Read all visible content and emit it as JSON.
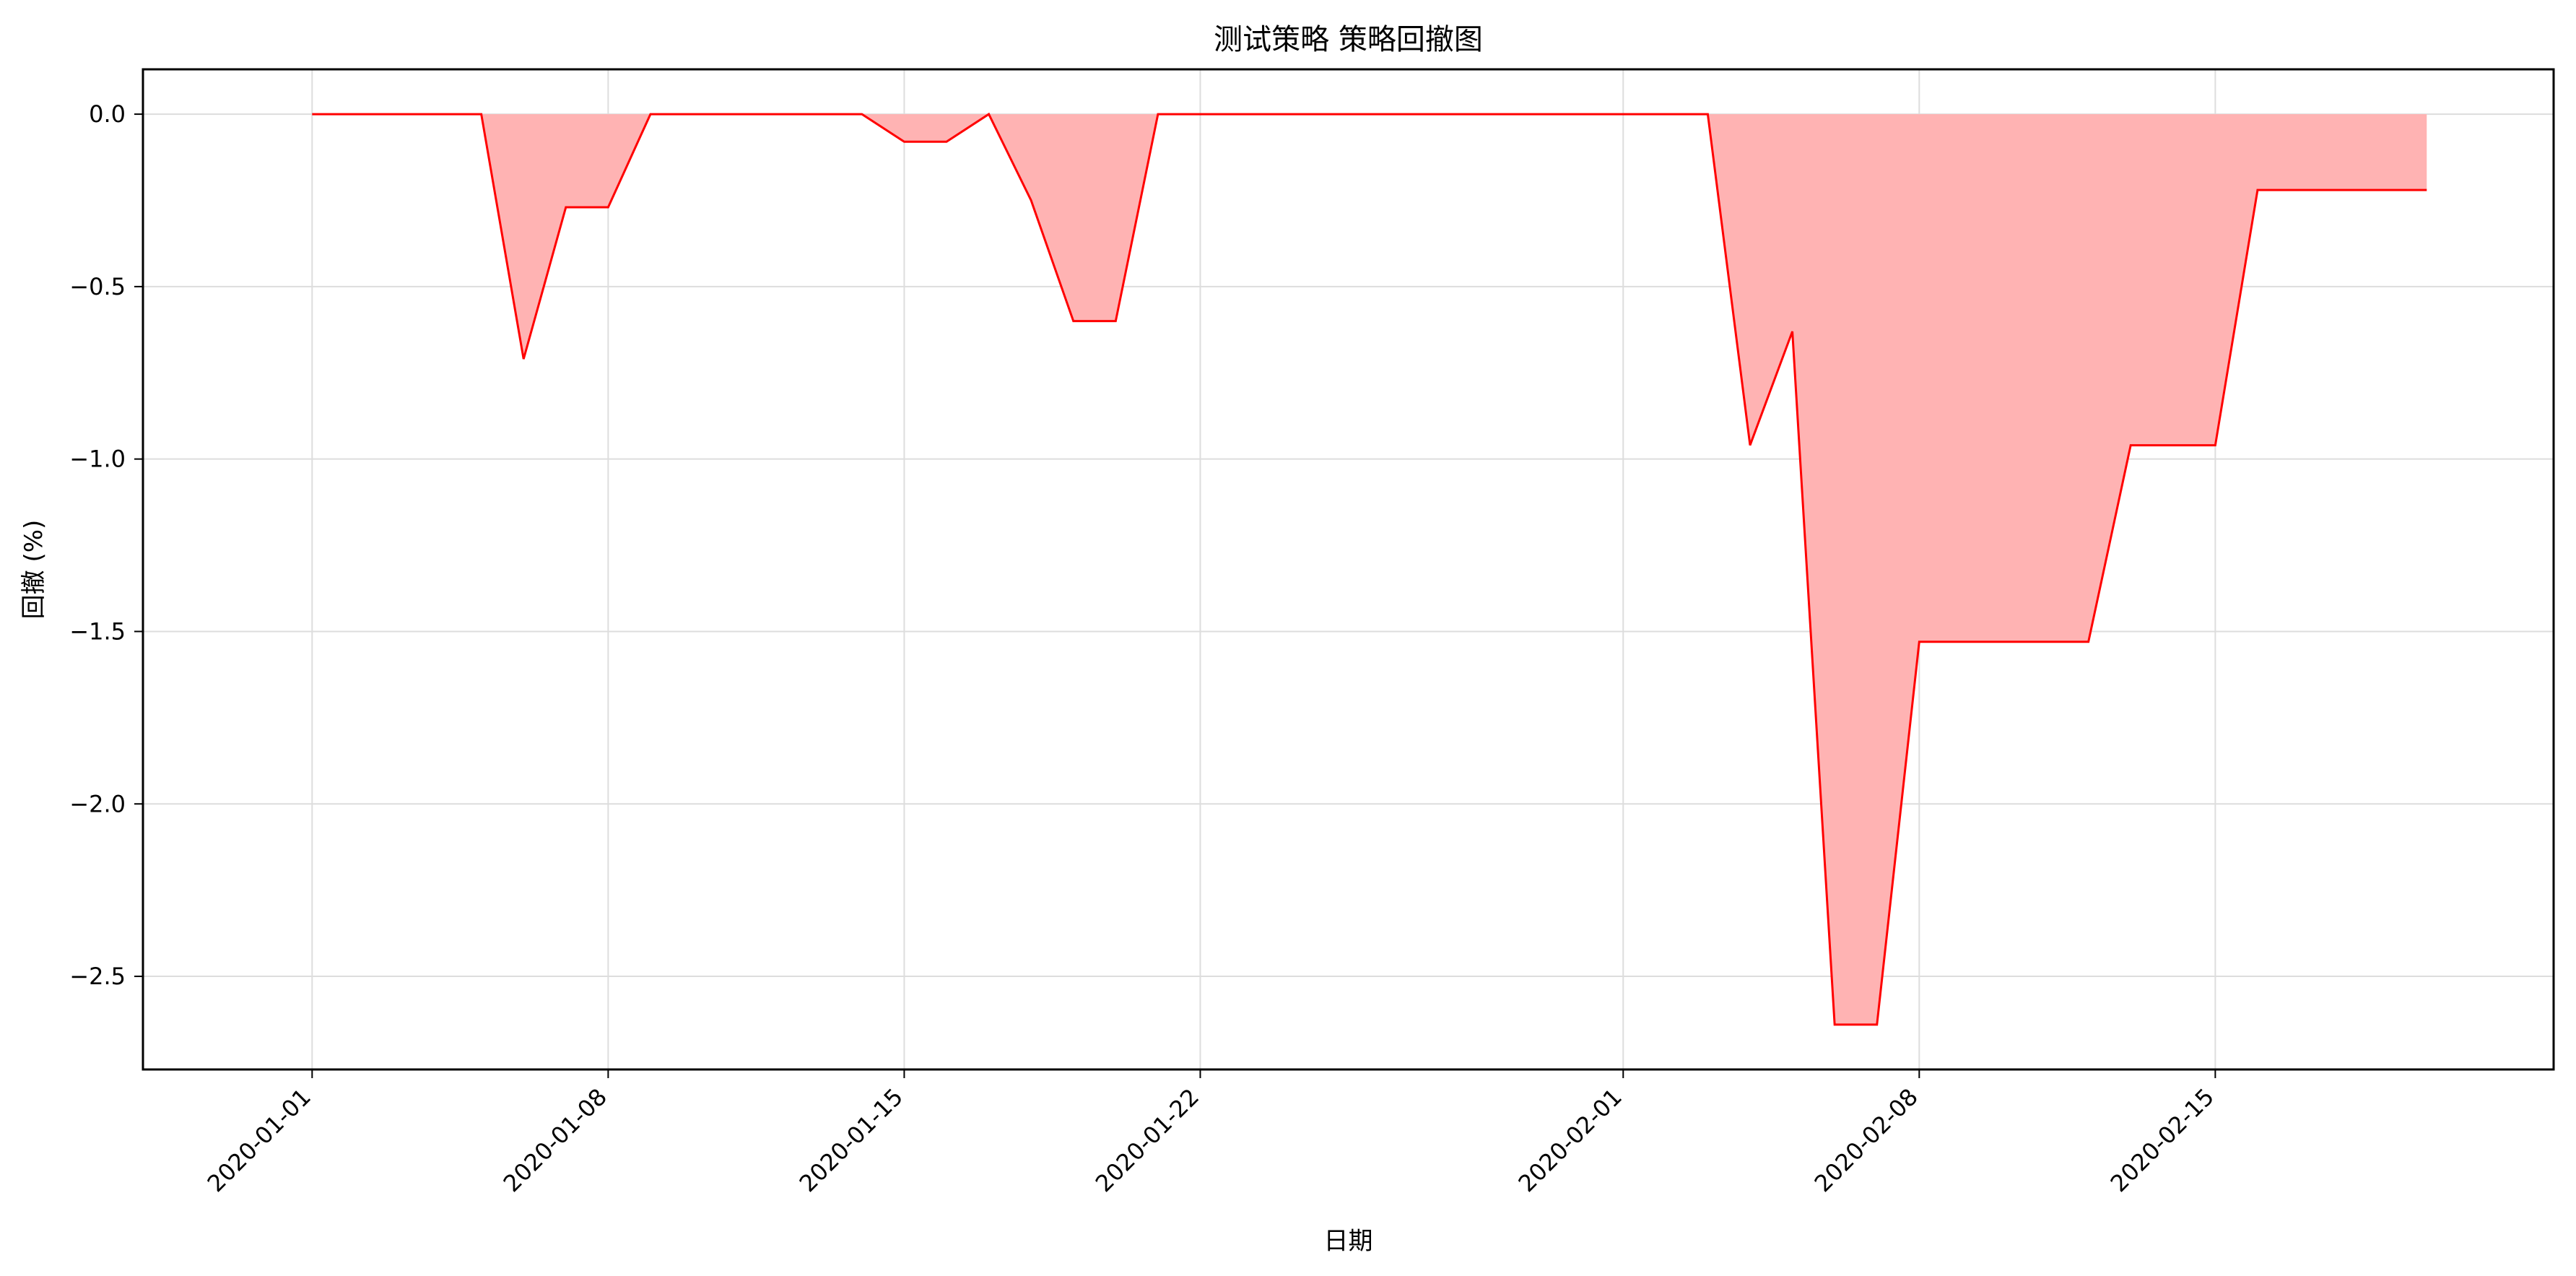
{
  "chart_data": {
    "type": "area",
    "title": "测试策略 策略回撤图",
    "xlabel": "日期",
    "ylabel": "回撤 (%)",
    "ylim": [
      -2.77,
      0.13
    ],
    "xlim": [
      "2019-12-28",
      "2020-02-23"
    ],
    "grid": true,
    "legend": "none",
    "colors": {
      "line": "#ff0000",
      "fill": "#ffb3b3",
      "grid": "#dddddd",
      "axis": "#000000"
    },
    "x_ticks": [
      "2020-01-01",
      "2020-01-08",
      "2020-01-15",
      "2020-01-22",
      "2020-02-01",
      "2020-02-08",
      "2020-02-15"
    ],
    "y_ticks": [
      0.0,
      -0.5,
      -1.0,
      -1.5,
      -2.0,
      -2.5
    ],
    "y_tick_labels": [
      "0.0",
      "−0.5",
      "−1.0",
      "−1.5",
      "−2.0",
      "−2.5"
    ],
    "series": [
      {
        "x": [
          "2020-01-01",
          "2020-01-02",
          "2020-01-03",
          "2020-01-04",
          "2020-01-05",
          "2020-01-06",
          "2020-01-07",
          "2020-01-08",
          "2020-01-09",
          "2020-01-10",
          "2020-01-11",
          "2020-01-12",
          "2020-01-13",
          "2020-01-14",
          "2020-01-15",
          "2020-01-16",
          "2020-01-17",
          "2020-01-18",
          "2020-01-19",
          "2020-01-20",
          "2020-01-21",
          "2020-01-22",
          "2020-01-23",
          "2020-01-24",
          "2020-01-25",
          "2020-01-26",
          "2020-01-27",
          "2020-01-28",
          "2020-01-29",
          "2020-01-30",
          "2020-01-31",
          "2020-02-01",
          "2020-02-02",
          "2020-02-03",
          "2020-02-04",
          "2020-02-05",
          "2020-02-06",
          "2020-02-07",
          "2020-02-08",
          "2020-02-09",
          "2020-02-10",
          "2020-02-11",
          "2020-02-12",
          "2020-02-13",
          "2020-02-14",
          "2020-02-15",
          "2020-02-16",
          "2020-02-17",
          "2020-02-18",
          "2020-02-19",
          "2020-02-20"
        ],
        "values": [
          0,
          0,
          0,
          0,
          0,
          -0.71,
          -0.27,
          -0.27,
          0,
          0,
          0,
          0,
          0,
          0,
          -0.08,
          -0.08,
          0,
          -0.25,
          -0.6,
          -0.6,
          0,
          0,
          0,
          0,
          0,
          0,
          0,
          0,
          0,
          0,
          0,
          0,
          0,
          0,
          -0.96,
          -0.63,
          -2.64,
          -2.64,
          -1.53,
          -1.53,
          -1.53,
          -1.53,
          -1.53,
          -0.96,
          -0.96,
          -0.96,
          -0.22,
          -0.22,
          -0.22,
          -0.22,
          -0.22
        ]
      }
    ]
  }
}
